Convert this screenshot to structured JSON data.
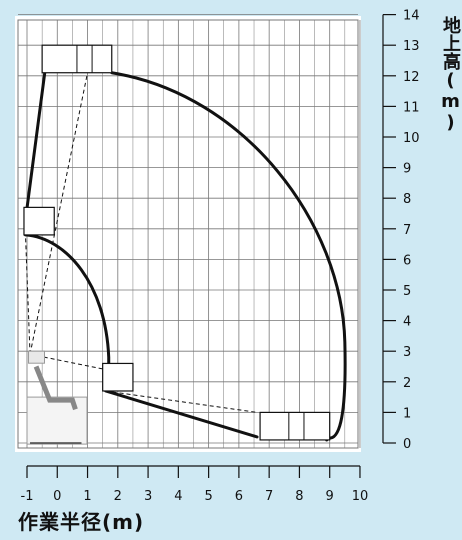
{
  "chart_data": {
    "type": "diagram",
    "x_axis": {
      "title": "作業半径(m)",
      "ticks": [
        "-1",
        "0",
        "1",
        "2",
        "3",
        "4",
        "5",
        "6",
        "7",
        "8",
        "9",
        "10"
      ],
      "range": [
        -1,
        10
      ]
    },
    "y_axis": {
      "title": "地上高(m)",
      "ticks": [
        "0",
        "1",
        "2",
        "3",
        "4",
        "5",
        "6",
        "7",
        "8",
        "9",
        "10",
        "11",
        "12",
        "13",
        "14"
      ],
      "range": [
        0,
        14
      ]
    },
    "grid": true,
    "colors": {
      "background": "#cfe9f3",
      "plot": "#ffffff",
      "grid": "#777777",
      "line": "#111111"
    }
  }
}
